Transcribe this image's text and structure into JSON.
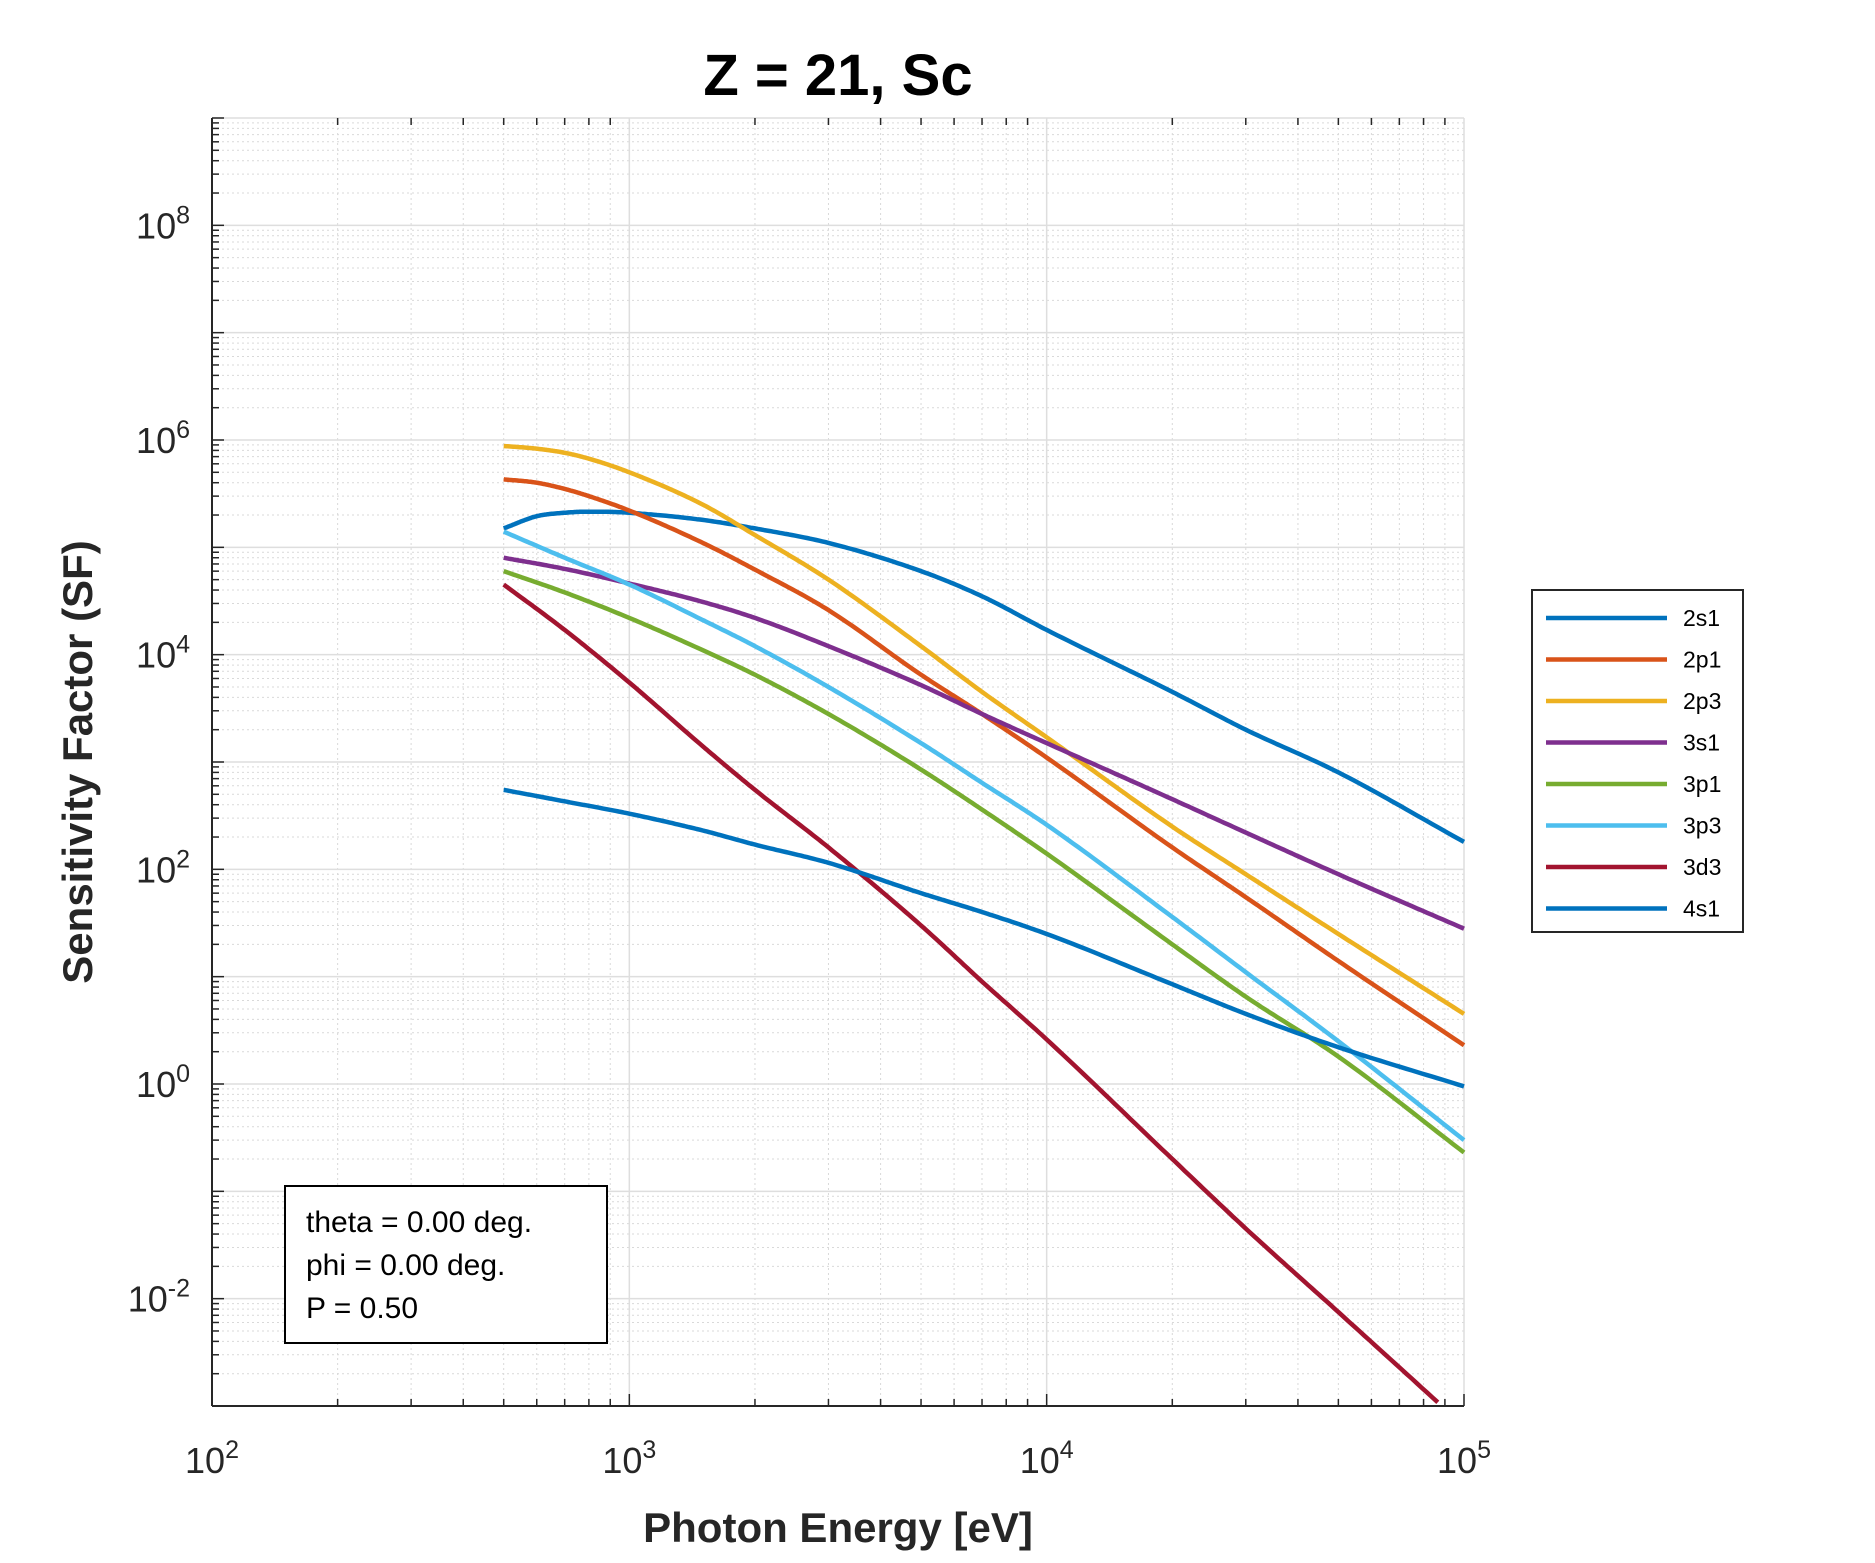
{
  "chart_data": {
    "type": "line",
    "title": "Z = 21, Sc",
    "xlabel": "Photon Energy [eV]",
    "ylabel": "Sensitivity Factor (SF)",
    "x_scale": "log",
    "y_scale": "log",
    "xlim": [
      100,
      100000
    ],
    "ylim": [
      0.001,
      1000000000
    ],
    "grid": true,
    "minor_grid": true,
    "legend_location": "outside-right",
    "x_ticks": [
      {
        "base": "10",
        "exp": "2",
        "value": 100
      },
      {
        "base": "10",
        "exp": "3",
        "value": 1000
      },
      {
        "base": "10",
        "exp": "4",
        "value": 10000
      },
      {
        "base": "10",
        "exp": "5",
        "value": 100000
      }
    ],
    "y_ticks": [
      {
        "base": "10",
        "exp": "-2",
        "value": 0.01
      },
      {
        "base": "10",
        "exp": "0",
        "value": 1
      },
      {
        "base": "10",
        "exp": "2",
        "value": 100
      },
      {
        "base": "10",
        "exp": "4",
        "value": 10000
      },
      {
        "base": "10",
        "exp": "6",
        "value": 1000000
      },
      {
        "base": "10",
        "exp": "8",
        "value": 100000000
      }
    ],
    "series": [
      {
        "name": "2s1",
        "color": "#0072BD",
        "x": [
          500,
          600,
          700,
          800,
          900,
          1000,
          1500,
          2000,
          3000,
          5000,
          7000,
          10000,
          20000,
          30000,
          50000,
          100000
        ],
        "y": [
          150000,
          195000,
          210000,
          215000,
          214000,
          210000,
          180000,
          150000,
          110000,
          60000,
          35000,
          17000,
          4500,
          2000,
          800,
          180
        ]
      },
      {
        "name": "2p1",
        "color": "#D95319",
        "x": [
          500,
          600,
          700,
          800,
          1000,
          1500,
          2000,
          3000,
          5000,
          7000,
          10000,
          20000,
          30000,
          50000,
          100000
        ],
        "y": [
          430000,
          400000,
          350000,
          300000,
          220000,
          110000,
          62000,
          26000,
          6500,
          2800,
          1100,
          160,
          55,
          14,
          2.3
        ]
      },
      {
        "name": "2p3",
        "color": "#EDB120",
        "x": [
          500,
          600,
          700,
          800,
          1000,
          1500,
          2000,
          3000,
          5000,
          7000,
          10000,
          20000,
          30000,
          50000,
          100000
        ],
        "y": [
          880000,
          830000,
          760000,
          670000,
          500000,
          250000,
          130000,
          50000,
          12000,
          4500,
          1700,
          250,
          90,
          25,
          4.5
        ]
      },
      {
        "name": "3s1",
        "color": "#7E2F8E",
        "x": [
          500,
          700,
          1000,
          1500,
          2000,
          3000,
          5000,
          7000,
          10000,
          20000,
          30000,
          50000,
          100000
        ],
        "y": [
          80000,
          63000,
          46000,
          31000,
          22000,
          12000,
          5200,
          2800,
          1500,
          450,
          220,
          90,
          28
        ]
      },
      {
        "name": "3p1",
        "color": "#77AC30",
        "x": [
          500,
          700,
          1000,
          1500,
          2000,
          3000,
          5000,
          7000,
          10000,
          20000,
          30000,
          50000,
          100000
        ],
        "y": [
          60000,
          38000,
          22000,
          11000,
          6500,
          2800,
          850,
          360,
          140,
          20,
          6.5,
          1.8,
          0.23
        ]
      },
      {
        "name": "3p3",
        "color": "#4DBEEE",
        "x": [
          500,
          700,
          1000,
          1500,
          2000,
          3000,
          5000,
          7000,
          10000,
          20000,
          30000,
          50000,
          100000
        ],
        "y": [
          140000,
          80000,
          45000,
          21000,
          12000,
          5000,
          1500,
          640,
          260,
          36,
          11,
          2.5,
          0.3
        ]
      },
      {
        "name": "3d3",
        "color": "#A2142F",
        "x": [
          500,
          700,
          1000,
          1500,
          2000,
          3000,
          5000,
          7000,
          10000,
          20000,
          30000,
          50000,
          100000
        ],
        "y": [
          45000,
          17000,
          5500,
          1400,
          550,
          160,
          30,
          9,
          2.6,
          0.2,
          0.045,
          0.0075,
          0.00065
        ]
      },
      {
        "name": "4s1",
        "color": "#0072BD",
        "x": [
          500,
          700,
          1000,
          1500,
          2000,
          3000,
          5000,
          7000,
          10000,
          20000,
          30000,
          50000,
          100000
        ],
        "y": [
          550,
          430,
          330,
          230,
          170,
          115,
          60,
          40,
          25,
          8.5,
          4.5,
          2.2,
          0.95
        ]
      }
    ],
    "annotation": {
      "lines": [
        "theta = 0.00 deg.",
        "phi = 0.00 deg.",
        "P = 0.50"
      ]
    }
  }
}
